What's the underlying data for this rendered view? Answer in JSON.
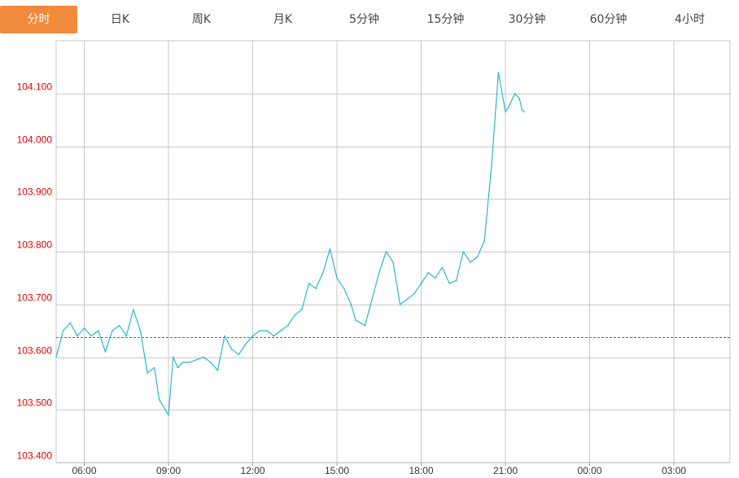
{
  "tabs": [
    {
      "label": "分时",
      "active": true
    },
    {
      "label": "日K",
      "active": false
    },
    {
      "label": "周K",
      "active": false
    },
    {
      "label": "月K",
      "active": false
    },
    {
      "label": "5分钟",
      "active": false
    },
    {
      "label": "15分钟",
      "active": false
    },
    {
      "label": "30分钟",
      "active": false
    },
    {
      "label": "60分钟",
      "active": false
    },
    {
      "label": "4小时",
      "active": false
    }
  ],
  "colors": {
    "accent": "#f08a3c",
    "line": "#2bb7cc",
    "reference": "#d0442a",
    "ytick": "#e60000",
    "grid": "#c8c8c8"
  },
  "chart_data": {
    "type": "line",
    "title": "",
    "xlabel": "",
    "ylabel": "",
    "ylim": [
      103.4,
      104.2
    ],
    "yticks": [
      "104.100",
      "104.000",
      "103.900",
      "103.800",
      "103.700",
      "103.600",
      "103.500",
      "103.400"
    ],
    "xticks": [
      "06:00",
      "09:00",
      "12:00",
      "15:00",
      "18:00",
      "21:00",
      "00:00",
      "03:00"
    ],
    "reference_value": 103.638,
    "grid": true,
    "series": [
      {
        "x": [
          "05:00",
          "05:15",
          "05:30",
          "05:45",
          "06:00",
          "06:15",
          "06:30",
          "06:45",
          "07:00",
          "07:15",
          "07:30",
          "07:45",
          "08:00",
          "08:15",
          "08:30",
          "08:40",
          "09:00",
          "09:10",
          "09:20",
          "09:30",
          "09:45",
          "10:00",
          "10:15",
          "10:30",
          "10:45",
          "11:00",
          "11:15",
          "11:30",
          "11:45",
          "12:00",
          "12:15",
          "12:30",
          "12:45",
          "13:00",
          "13:15",
          "13:30",
          "13:45",
          "14:00",
          "14:15",
          "14:30",
          "14:45",
          "15:00",
          "15:15",
          "15:30",
          "15:40",
          "16:00",
          "16:15",
          "16:30",
          "16:45",
          "17:00",
          "17:15",
          "17:30",
          "17:45",
          "18:00",
          "18:15",
          "18:30",
          "18:45",
          "19:00",
          "19:15",
          "19:30",
          "19:45",
          "20:00",
          "20:15",
          "20:30",
          "20:45",
          "21:00",
          "21:10",
          "21:20",
          "21:30",
          "21:35",
          "21:40"
        ],
        "values": [
          103.6,
          103.65,
          103.665,
          103.64,
          103.655,
          103.64,
          103.65,
          103.61,
          103.65,
          103.66,
          103.64,
          103.69,
          103.65,
          103.57,
          103.58,
          103.52,
          103.49,
          103.6,
          103.58,
          103.59,
          103.59,
          103.595,
          103.6,
          103.59,
          103.575,
          103.64,
          103.615,
          103.605,
          103.625,
          103.64,
          103.65,
          103.65,
          103.64,
          103.65,
          103.66,
          103.68,
          103.69,
          103.74,
          103.73,
          103.76,
          103.805,
          103.75,
          103.73,
          103.7,
          103.67,
          103.66,
          103.71,
          103.76,
          103.8,
          103.78,
          103.7,
          103.71,
          103.72,
          103.74,
          103.76,
          103.75,
          103.77,
          103.74,
          103.745,
          103.8,
          103.78,
          103.79,
          103.82,
          103.96,
          104.14,
          104.065,
          104.08,
          104.1,
          104.09,
          104.07,
          104.065
        ]
      }
    ]
  }
}
